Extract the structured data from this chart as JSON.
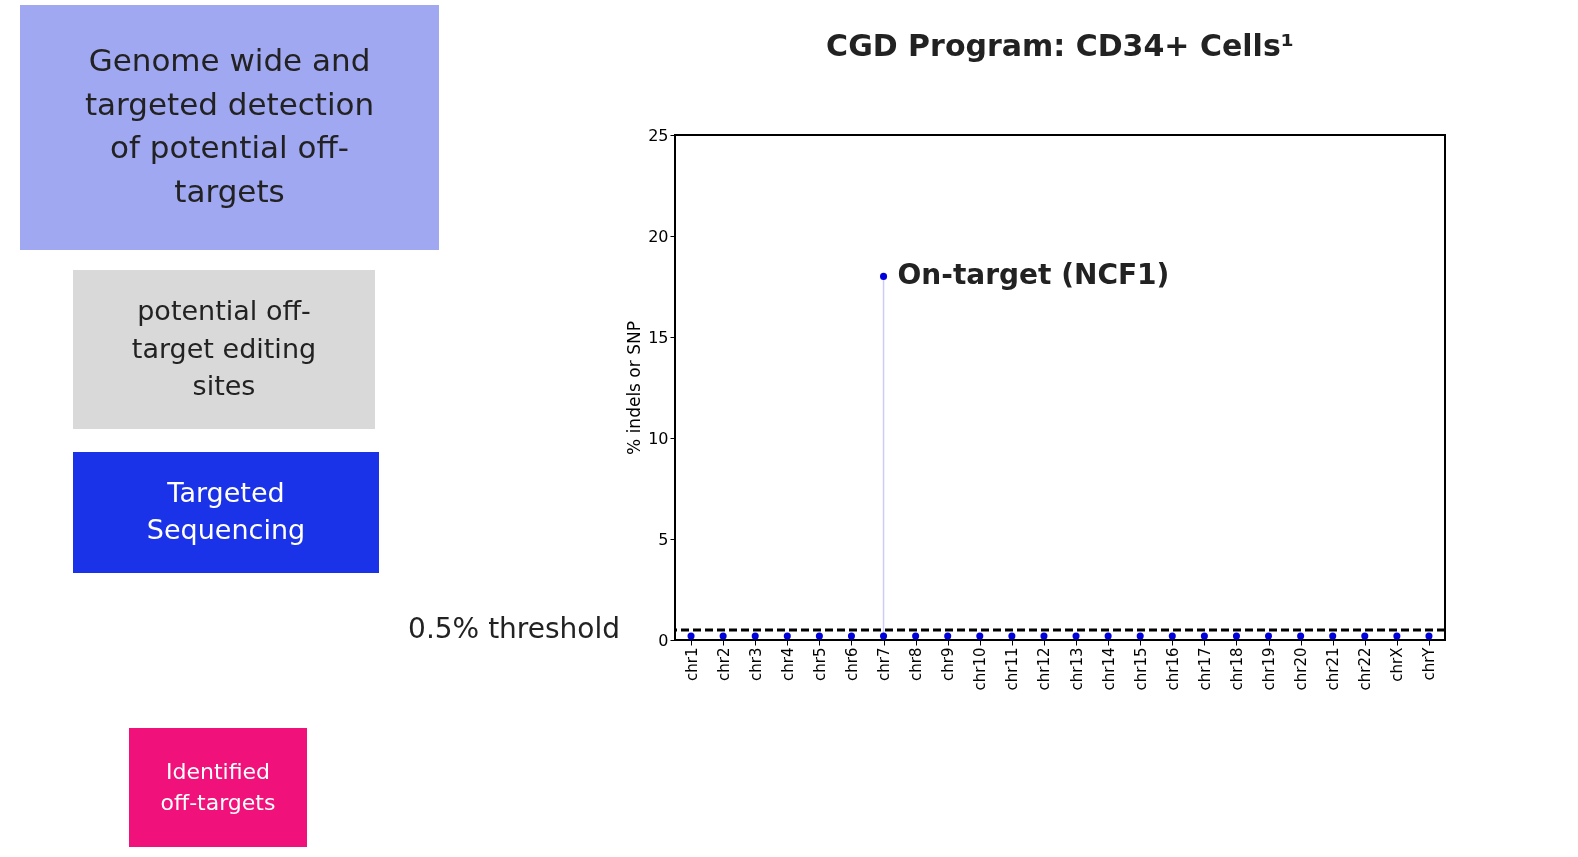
{
  "chart_data": {
    "type": "scatter",
    "title": "CGD Program: CD34+ Cells¹",
    "ylabel": "% indels or SNP",
    "categories": [
      "chr1",
      "chr2",
      "chr3",
      "chr4",
      "chr5",
      "chr6",
      "chr7",
      "chr8",
      "chr9",
      "chr10",
      "chr11",
      "chr12",
      "chr13",
      "chr14",
      "chr15",
      "chr16",
      "chr17",
      "chr18",
      "chr19",
      "chr20",
      "chr21",
      "chr22",
      "chrX",
      "chrY"
    ],
    "series": [
      {
        "color": "#0000dd",
        "values": [
          0.2,
          0.2,
          0.2,
          0.2,
          0.2,
          0.2,
          0.2,
          0.2,
          0.2,
          0.2,
          0.2,
          0.2,
          0.2,
          0.2,
          0.2,
          0.2,
          0.2,
          0.2,
          0.2,
          0.2,
          0.2,
          0.2,
          0.2,
          0.2
        ]
      },
      {
        "type": "lollipop",
        "color": "#0000dd",
        "values": [
          null,
          null,
          null,
          null,
          null,
          null,
          18,
          null,
          null,
          null,
          null,
          null,
          null,
          null,
          null,
          null,
          null,
          null,
          null,
          null,
          null,
          null,
          null,
          null
        ]
      }
    ],
    "ylim": [
      0,
      25
    ],
    "yticks": [
      0,
      5,
      10,
      15,
      20,
      25
    ],
    "ref_lines": [
      {
        "axis": "y",
        "value": 0.5,
        "label": "0.5% threshold",
        "color": "#000000",
        "line_style": "dashed"
      }
    ],
    "annotations": [
      "Genome wide and targeted detection of potential off-targets",
      "potential off-target editing sites",
      "Targeted Sequencing",
      "Identified off-targets",
      {
        "text": "On-target (NCF1)",
        "x": "chr7",
        "y": 18
      }
    ],
    "grid": false,
    "marker": "circle"
  }
}
